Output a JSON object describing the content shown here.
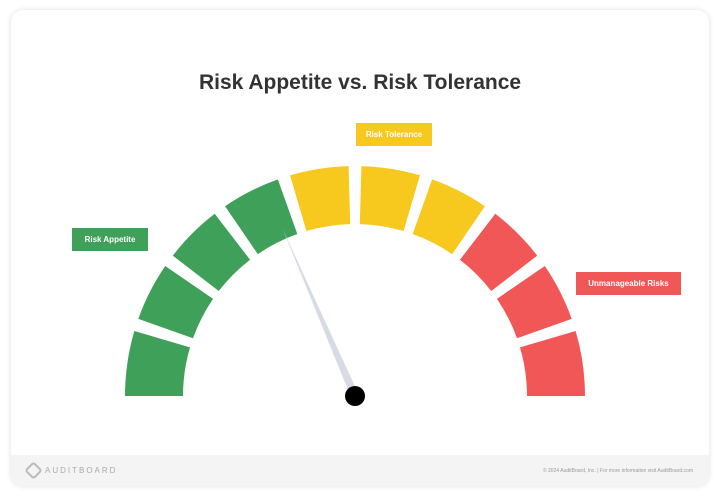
{
  "title": "Risk Appetite vs. Risk Tolerance",
  "labels": {
    "appetite": "Risk Appetite",
    "tolerance": "Risk Tolerance",
    "unmanageable": "Unmanageable Risks"
  },
  "colors": {
    "green": "#3fa05a",
    "yellow": "#f7c81e",
    "red": "#f25757",
    "needle": "#d6dbe6",
    "hub": "#000000"
  },
  "gauge": {
    "segments": [
      "green",
      "green",
      "green",
      "green",
      "yellow",
      "yellow",
      "yellow",
      "red",
      "red",
      "red"
    ],
    "needle_fraction": 0.37
  },
  "footer": {
    "brand": "AUDITBOARD",
    "copyright": "© 2024 AuditBoard, Inc.  |  For more information visit AuditBoard.com"
  }
}
